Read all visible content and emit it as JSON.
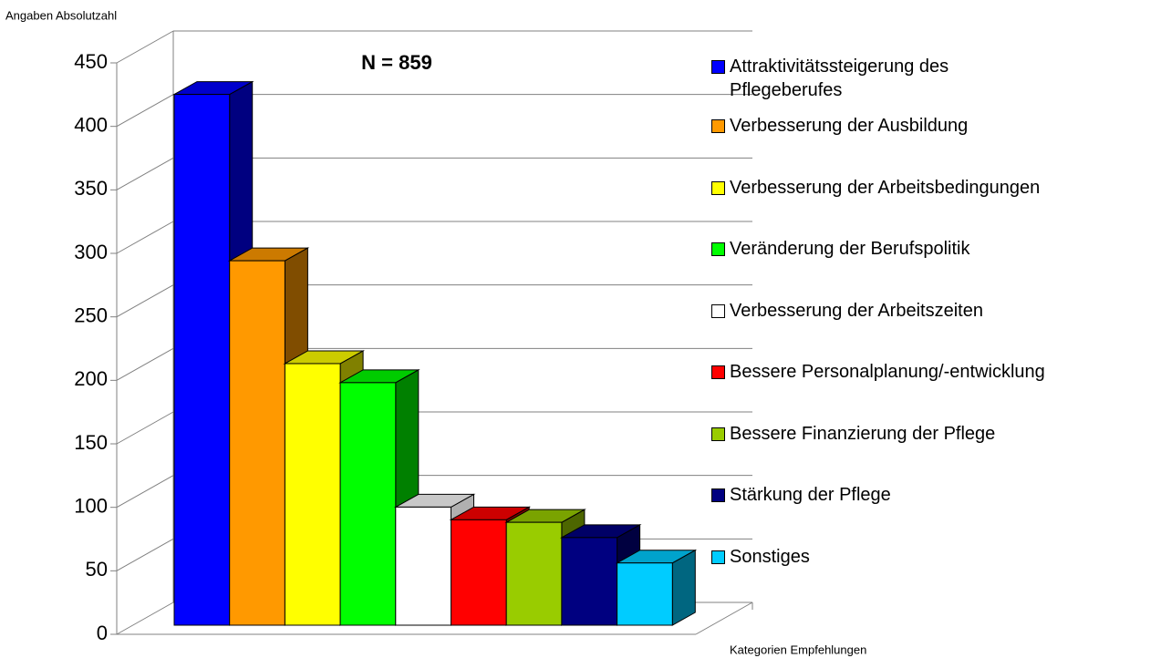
{
  "chart_data": {
    "type": "bar3d",
    "title": "N = 859",
    "y_label": "Angaben Absolutzahl",
    "x_label": "Kategorien Empfehlungen",
    "categories": [
      "Attraktivitätssteigerung des Pflegeberufes",
      "Verbesserung der Ausbildung",
      "Verbesserung der Arbeitsbedingungen",
      "Veränderung der Berufspolitik",
      "Verbesserung der Arbeitszeiten",
      "Bessere Personalplanung/-entwicklung",
      "Bessere Finanzierung der Pflege",
      "Stärkung der Pflege",
      "Sonstiges"
    ],
    "values": [
      418,
      287,
      206,
      191,
      93,
      83,
      81,
      69,
      49
    ],
    "colors": [
      "#0000ff",
      "#ff9900",
      "#ffff00",
      "#00ff00",
      "#ffffff",
      "#ff0000",
      "#99cc00",
      "#000080",
      "#00ccff"
    ],
    "ylim": [
      0,
      450
    ],
    "yticks": [
      0,
      50,
      100,
      150,
      200,
      250,
      300,
      350,
      400,
      450
    ],
    "grid": true,
    "legend": "right"
  }
}
